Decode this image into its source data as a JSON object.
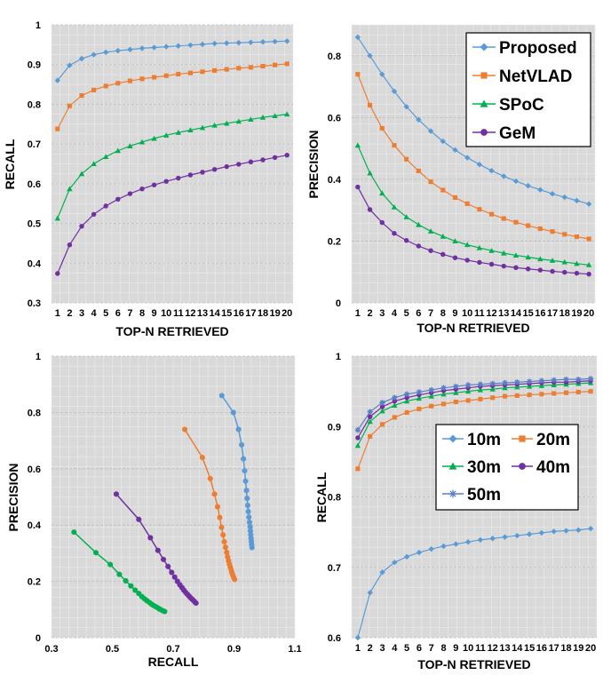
{
  "chart_data": [
    {
      "type": "line",
      "xlabel": "TOP-N RETRIEVED",
      "ylabel": "RECALL",
      "ylim": [
        0.3,
        1
      ],
      "yticks": [
        "0.3",
        "0.4",
        "0.5",
        "0.6",
        "0.7",
        "0.8",
        "0.9",
        "1"
      ],
      "xticks": [
        "1",
        "2",
        "3",
        "4",
        "5",
        "6",
        "7",
        "8",
        "9",
        "10",
        "11",
        "12",
        "13",
        "14",
        "15",
        "16",
        "17",
        "18",
        "19",
        "20"
      ],
      "grid": true,
      "series": [
        {
          "name": "Proposed",
          "color": "#5b9bd5",
          "marker": "diamond",
          "values": [
            0.86,
            0.898,
            0.915,
            0.925,
            0.931,
            0.935,
            0.938,
            0.941,
            0.943,
            0.945,
            0.947,
            0.949,
            0.951,
            0.953,
            0.954,
            0.955,
            0.956,
            0.957,
            0.958,
            0.959
          ]
        },
        {
          "name": "NetVLAD",
          "color": "#ed7d31",
          "marker": "square",
          "values": [
            0.738,
            0.796,
            0.822,
            0.836,
            0.846,
            0.853,
            0.859,
            0.864,
            0.868,
            0.872,
            0.876,
            0.879,
            0.882,
            0.885,
            0.888,
            0.891,
            0.893,
            0.896,
            0.899,
            0.902
          ]
        },
        {
          "name": "SPoC",
          "color": "#00b050",
          "marker": "triangle",
          "values": [
            0.513,
            0.587,
            0.625,
            0.65,
            0.668,
            0.683,
            0.695,
            0.705,
            0.714,
            0.722,
            0.729,
            0.735,
            0.741,
            0.747,
            0.752,
            0.757,
            0.762,
            0.767,
            0.771,
            0.775
          ]
        },
        {
          "name": "GeM",
          "color": "#7030a0",
          "marker": "circle",
          "values": [
            0.374,
            0.446,
            0.493,
            0.523,
            0.544,
            0.561,
            0.575,
            0.587,
            0.597,
            0.606,
            0.614,
            0.622,
            0.629,
            0.636,
            0.643,
            0.649,
            0.655,
            0.66,
            0.666,
            0.672
          ]
        }
      ]
    },
    {
      "type": "line",
      "xlabel": "TOP-N RETRIEVED",
      "ylabel": "PRECISION",
      "ylim": [
        0,
        0.9
      ],
      "yticks": [
        "0",
        "0.2",
        "0.4",
        "0.6",
        "0.8"
      ],
      "ytick_values": [
        0,
        0.2,
        0.4,
        0.6,
        0.8
      ],
      "xticks": [
        "1",
        "2",
        "3",
        "4",
        "5",
        "6",
        "7",
        "8",
        "9",
        "10",
        "11",
        "12",
        "13",
        "14",
        "15",
        "16",
        "17",
        "18",
        "19",
        "20"
      ],
      "grid": true,
      "legend": {
        "position": "top-right",
        "entries": [
          "Proposed",
          "NetVLAD",
          "SPoC",
          "GeM"
        ]
      },
      "series": [
        {
          "name": "Proposed",
          "color": "#5b9bd5",
          "marker": "diamond",
          "values": [
            0.86,
            0.8,
            0.74,
            0.685,
            0.635,
            0.593,
            0.556,
            0.523,
            0.495,
            0.47,
            0.448,
            0.428,
            0.41,
            0.394,
            0.379,
            0.366,
            0.353,
            0.342,
            0.331,
            0.32
          ]
        },
        {
          "name": "NetVLAD",
          "color": "#ed7d31",
          "marker": "square",
          "values": [
            0.74,
            0.64,
            0.565,
            0.51,
            0.465,
            0.427,
            0.392,
            0.365,
            0.341,
            0.321,
            0.303,
            0.287,
            0.273,
            0.261,
            0.25,
            0.24,
            0.231,
            0.222,
            0.214,
            0.207
          ]
        },
        {
          "name": "SPoC",
          "color": "#00b050",
          "marker": "triangle",
          "values": [
            0.51,
            0.42,
            0.355,
            0.31,
            0.278,
            0.253,
            0.232,
            0.215,
            0.2,
            0.188,
            0.178,
            0.169,
            0.161,
            0.154,
            0.148,
            0.142,
            0.137,
            0.132,
            0.127,
            0.123
          ]
        },
        {
          "name": "GeM",
          "color": "#7030a0",
          "marker": "circle",
          "values": [
            0.375,
            0.302,
            0.26,
            0.225,
            0.202,
            0.184,
            0.169,
            0.157,
            0.146,
            0.138,
            0.131,
            0.125,
            0.119,
            0.114,
            0.11,
            0.106,
            0.102,
            0.099,
            0.096,
            0.093
          ]
        }
      ]
    },
    {
      "type": "scatter",
      "xlabel": "RECALL",
      "ylabel": "PRECISION",
      "xlim": [
        0.3,
        1.1
      ],
      "ylim": [
        0,
        1
      ],
      "xticks": [
        "0.3",
        "0.5",
        "0.7",
        "0.9",
        "1.1"
      ],
      "xtick_values": [
        0.3,
        0.5,
        0.7,
        0.9,
        1.1
      ],
      "yticks": [
        "0",
        "0.2",
        "0.4",
        "0.6",
        "0.8",
        "1"
      ],
      "ytick_values": [
        0,
        0.2,
        0.4,
        0.6,
        0.8,
        1
      ],
      "grid": true,
      "series": [
        {
          "name": "Proposed",
          "color": "#5b9bd5",
          "x": [
            0.86,
            0.898,
            0.915,
            0.925,
            0.931,
            0.935,
            0.938,
            0.941,
            0.943,
            0.945,
            0.947,
            0.949,
            0.951,
            0.953,
            0.954,
            0.955,
            0.956,
            0.957,
            0.958,
            0.959
          ],
          "y": [
            0.86,
            0.8,
            0.74,
            0.685,
            0.635,
            0.593,
            0.556,
            0.523,
            0.495,
            0.47,
            0.448,
            0.428,
            0.41,
            0.394,
            0.379,
            0.366,
            0.353,
            0.342,
            0.331,
            0.32
          ]
        },
        {
          "name": "NetVLAD",
          "color": "#ed7d31",
          "x": [
            0.738,
            0.796,
            0.822,
            0.836,
            0.846,
            0.853,
            0.859,
            0.864,
            0.868,
            0.872,
            0.876,
            0.879,
            0.882,
            0.885,
            0.888,
            0.891,
            0.893,
            0.896,
            0.899,
            0.902
          ],
          "y": [
            0.74,
            0.64,
            0.565,
            0.51,
            0.465,
            0.427,
            0.392,
            0.365,
            0.341,
            0.321,
            0.303,
            0.287,
            0.273,
            0.261,
            0.25,
            0.24,
            0.231,
            0.222,
            0.214,
            0.207
          ]
        },
        {
          "name": "SPoC",
          "color": "#7030a0",
          "x": [
            0.513,
            0.587,
            0.625,
            0.65,
            0.668,
            0.683,
            0.695,
            0.705,
            0.714,
            0.722,
            0.729,
            0.735,
            0.741,
            0.747,
            0.752,
            0.757,
            0.762,
            0.767,
            0.771,
            0.775
          ],
          "y": [
            0.51,
            0.42,
            0.355,
            0.31,
            0.278,
            0.253,
            0.232,
            0.215,
            0.2,
            0.188,
            0.178,
            0.169,
            0.161,
            0.154,
            0.148,
            0.142,
            0.137,
            0.132,
            0.127,
            0.123
          ]
        },
        {
          "name": "GeM",
          "color": "#00b050",
          "x": [
            0.374,
            0.446,
            0.493,
            0.523,
            0.544,
            0.561,
            0.575,
            0.587,
            0.597,
            0.606,
            0.614,
            0.622,
            0.629,
            0.636,
            0.643,
            0.649,
            0.655,
            0.66,
            0.666,
            0.672
          ],
          "y": [
            0.375,
            0.302,
            0.26,
            0.225,
            0.202,
            0.184,
            0.169,
            0.157,
            0.146,
            0.138,
            0.131,
            0.125,
            0.119,
            0.114,
            0.11,
            0.106,
            0.102,
            0.099,
            0.096,
            0.093
          ]
        }
      ]
    },
    {
      "type": "line",
      "xlabel": "TOP-N RETRIEVED",
      "ylabel": "RECALL",
      "ylim": [
        0.6,
        1
      ],
      "yticks": [
        "0.6",
        "0.7",
        "0.8",
        "0.9",
        "1"
      ],
      "ytick_values": [
        0.6,
        0.7,
        0.8,
        0.9,
        1
      ],
      "xticks": [
        "1",
        "2",
        "3",
        "4",
        "5",
        "6",
        "7",
        "8",
        "9",
        "10",
        "11",
        "12",
        "13",
        "14",
        "15",
        "16",
        "17",
        "18",
        "19",
        "20"
      ],
      "grid": true,
      "legend": {
        "position": "center-right",
        "entries": [
          "10m",
          "20m",
          "30m",
          "40m",
          "50m"
        ]
      },
      "series": [
        {
          "name": "10m",
          "color": "#5b9bd5",
          "marker": "diamond",
          "values": [
            0.6,
            0.664,
            0.693,
            0.707,
            0.715,
            0.721,
            0.726,
            0.73,
            0.733,
            0.736,
            0.739,
            0.741,
            0.743,
            0.745,
            0.747,
            0.749,
            0.751,
            0.752,
            0.753,
            0.755
          ]
        },
        {
          "name": "20m",
          "color": "#ed7d31",
          "marker": "square",
          "values": [
            0.84,
            0.886,
            0.903,
            0.913,
            0.92,
            0.925,
            0.929,
            0.932,
            0.935,
            0.937,
            0.939,
            0.941,
            0.943,
            0.944,
            0.945,
            0.946,
            0.947,
            0.948,
            0.949,
            0.95
          ]
        },
        {
          "name": "30m",
          "color": "#00b050",
          "marker": "triangle",
          "values": [
            0.873,
            0.907,
            0.922,
            0.93,
            0.936,
            0.94,
            0.943,
            0.946,
            0.948,
            0.95,
            0.952,
            0.953,
            0.955,
            0.956,
            0.957,
            0.958,
            0.959,
            0.96,
            0.961,
            0.962
          ]
        },
        {
          "name": "40m",
          "color": "#7030a0",
          "marker": "circle",
          "values": [
            0.884,
            0.914,
            0.928,
            0.936,
            0.941,
            0.945,
            0.948,
            0.951,
            0.953,
            0.955,
            0.957,
            0.958,
            0.959,
            0.96,
            0.961,
            0.962,
            0.963,
            0.963,
            0.964,
            0.965
          ]
        },
        {
          "name": "50m",
          "color": "#5b7fc7",
          "marker": "star",
          "values": [
            0.895,
            0.921,
            0.934,
            0.941,
            0.946,
            0.949,
            0.952,
            0.955,
            0.957,
            0.959,
            0.96,
            0.961,
            0.962,
            0.963,
            0.964,
            0.965,
            0.966,
            0.967,
            0.967,
            0.968
          ]
        }
      ]
    }
  ]
}
